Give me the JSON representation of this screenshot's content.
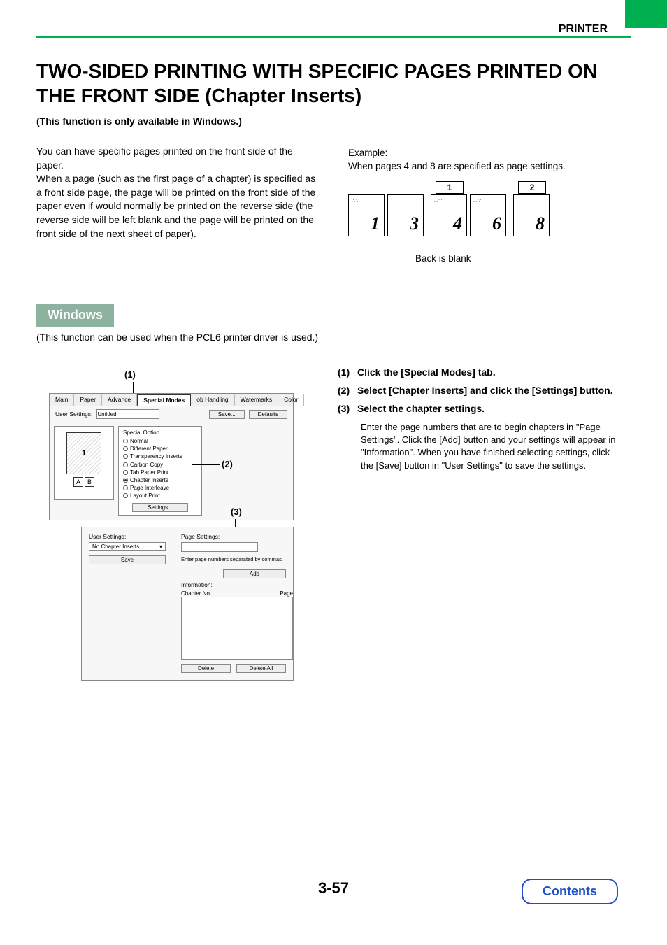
{
  "header": {
    "section": "PRINTER"
  },
  "title": "TWO-SIDED PRINTING WITH SPECIFIC PAGES PRINTED ON THE FRONT SIDE (Chapter Inserts)",
  "subtitle": "(This function is only available in Windows.)",
  "intro": "You can have specific pages printed on the front side of the paper.\nWhen a page (such as the first page of a chapter) is specified as a front side page, the page will be printed on the front side of the paper even if would normally be printed on the reverse side (the reverse side will be left blank and the page will be printed on the front side of the next sheet of paper).",
  "example": {
    "label": "Example:",
    "text": "When pages 4 and 8 are specified as page settings.",
    "tabs": [
      "1",
      "2"
    ],
    "pages": [
      "1",
      "3",
      "4",
      "6",
      "8"
    ],
    "caption": "Back is blank"
  },
  "section": {
    "badge": "Windows",
    "note": "(This function can be used when the PCL6 printer driver is used.)"
  },
  "callouts": {
    "c1": "(1)",
    "c2": "(2)",
    "c3": "(3)"
  },
  "dialog1": {
    "tabs": [
      "Main",
      "Paper",
      "Advance",
      "Special Modes",
      "ob Handling",
      "Watermarks",
      "Color"
    ],
    "active_tab_index": 3,
    "user_settings_label": "User Settings:",
    "user_settings_value": "Untitled",
    "save_btn": "Save...",
    "defaults_btn": "Defaults",
    "preview_num": "1",
    "ab": [
      "A",
      "B"
    ],
    "options_title": "Special Option",
    "options": [
      "Normal",
      "Different Paper",
      "Transparency Inserts",
      "Carbon Copy",
      "Tab Paper Print",
      "Chapter Inserts",
      "Page Interleave",
      "Layout Print"
    ],
    "selected_option_index": 5,
    "settings_btn": "Settings..."
  },
  "dialog2": {
    "user_settings_label": "User Settings:",
    "select_value": "No Chapter Inserts",
    "save_btn": "Save",
    "page_settings_label": "Page Settings:",
    "hint": "Enter page numbers separated by commas.",
    "add_btn": "Add",
    "info_label": "Information:",
    "col1": "Chapter No.",
    "col2": "Page",
    "delete_btn": "Delete",
    "delete_all_btn": "Delete All"
  },
  "instructions": [
    {
      "num": "(1)",
      "text": "Click the [Special Modes] tab."
    },
    {
      "num": "(2)",
      "text": "Select [Chapter Inserts] and click the [Settings] button."
    },
    {
      "num": "(3)",
      "text": "Select the chapter settings.",
      "body": "Enter the page numbers that are to begin chapters in \"Page Settings\". Click the [Add] button and your settings will appear in \"Information\". When you have finished selecting settings, click the [Save] button in \"User Settings\" to save the settings."
    }
  ],
  "footer": {
    "page": "3-57",
    "contents": "Contents"
  },
  "colors": {
    "accent_green": "#00b050",
    "badge_bg": "#8db3a0",
    "link_blue": "#2050c8"
  }
}
